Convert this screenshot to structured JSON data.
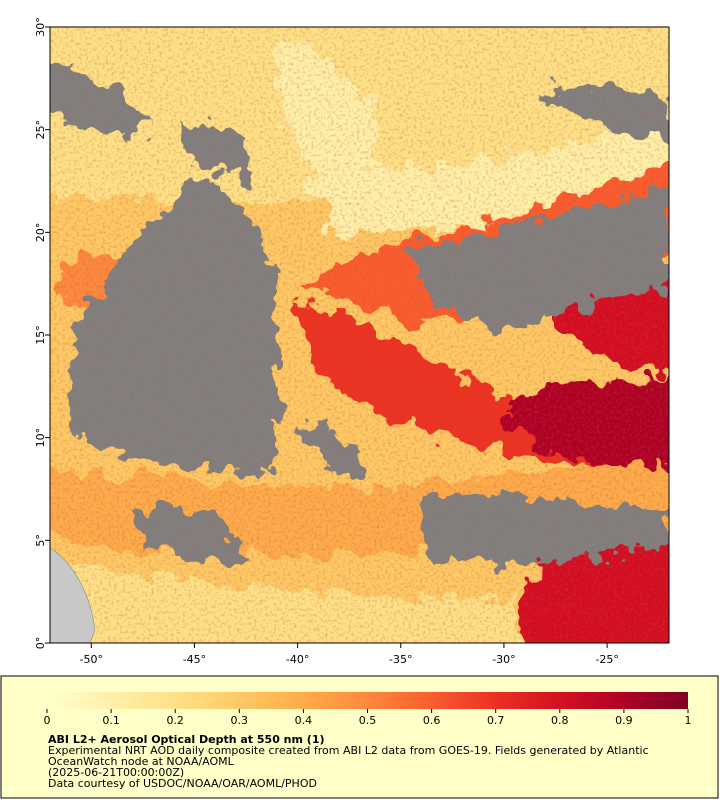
{
  "map": {
    "xlim": [
      -52,
      -22
    ],
    "ylim": [
      0,
      30
    ],
    "xticks": [
      {
        "value": -50,
        "label": "-50°"
      },
      {
        "value": -45,
        "label": "-45°"
      },
      {
        "value": -40,
        "label": "-40°"
      },
      {
        "value": -35,
        "label": "-35°"
      },
      {
        "value": -30,
        "label": "-30°"
      },
      {
        "value": -25,
        "label": "-25°"
      }
    ],
    "yticks": [
      {
        "value": 0,
        "label": "0°"
      },
      {
        "value": 5,
        "label": "5°"
      },
      {
        "value": 10,
        "label": "10°"
      },
      {
        "value": 15,
        "label": "15°"
      },
      {
        "value": 20,
        "label": "20°"
      },
      {
        "value": 25,
        "label": "25°"
      },
      {
        "value": 30,
        "label": "30°"
      }
    ]
  },
  "colorbar": {
    "lim": [
      0,
      1
    ],
    "ticks": [
      0,
      0.1,
      0.2,
      0.3,
      0.4,
      0.5,
      0.6,
      0.7,
      0.8,
      0.9,
      1
    ],
    "colors": [
      "#ffffcc",
      "#fff0a8",
      "#fee187",
      "#fec965",
      "#feab4b",
      "#fd893c",
      "#fa5c2e",
      "#ec3023",
      "#d31121",
      "#af0225",
      "#800026"
    ]
  },
  "caption": {
    "title": "ABI L2+ Aerosol Optical Depth at 550 nm (1)",
    "lines": [
      "Experimental NRT AOD daily composite created from ABI L2 data from GOES-19. Fields generated by Atlantic",
      "OceanWatch node at NOAA/AOML",
      "(2025-06-21T00:00:00Z)",
      "Data courtesy of USDOC/NOAA/OAR/AOML/PHOD"
    ]
  }
}
